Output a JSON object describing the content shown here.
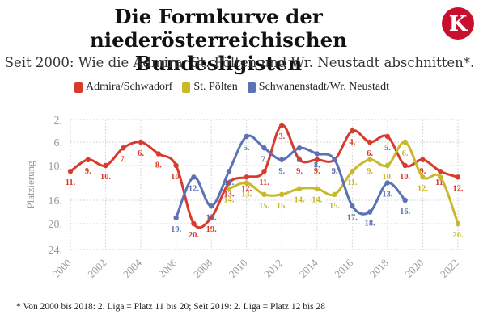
{
  "header": {
    "title_line1": "Die Formkurve der niederösterreichischen",
    "title_line2": "Bundesligisten",
    "subtitle": "Seit 2000: Wie die Admira, St. Pölten und Wr. Neustadt abschnitten*.",
    "logo_letter": "K"
  },
  "footnote": "* Von 2000 bis 2018: 2. Liga = Platz 11 bis 20; Seit 2019: 2. Liga = Platz 12 bis 28",
  "colors": {
    "admira": "#d93a2b",
    "stpoelten": "#c9b92a",
    "wrneustadt": "#5b72b5",
    "logo": "#c8102e"
  },
  "chart_data": {
    "type": "line",
    "ylabel": "Platzierung",
    "y_reversed": true,
    "ylim": [
      2,
      24
    ],
    "yticks": [
      2,
      6,
      10,
      16,
      20,
      24
    ],
    "ytick_labels": [
      "2.",
      "6.",
      "10.",
      "16.",
      "20.",
      "24."
    ],
    "xlim": [
      2000,
      2022
    ],
    "xticks": [
      2000,
      2002,
      2004,
      2006,
      2008,
      2010,
      2012,
      2014,
      2016,
      2018,
      2020,
      2022
    ],
    "grid": true,
    "legend_position": "top",
    "series": [
      {
        "name": "Admira/Schwadorf",
        "color": "#d93a2b",
        "points": [
          {
            "x": 2000,
            "y": 11,
            "label": "11."
          },
          {
            "x": 2001,
            "y": 9,
            "label": "9."
          },
          {
            "x": 2002,
            "y": 10,
            "label": "10."
          },
          {
            "x": 2003,
            "y": 7,
            "label": "7."
          },
          {
            "x": 2004,
            "y": 6,
            "label": "6."
          },
          {
            "x": 2005,
            "y": 8,
            "label": "8."
          },
          {
            "x": 2006,
            "y": 10,
            "label": "10."
          },
          {
            "x": 2007,
            "y": 20,
            "label": "20."
          },
          {
            "x": 2008,
            "y": 19,
            "label": "19."
          },
          {
            "x": 2009,
            "y": 13,
            "label": "13."
          },
          {
            "x": 2010,
            "y": 12,
            "label": "12."
          },
          {
            "x": 2011,
            "y": 11,
            "label": "11."
          },
          {
            "x": 2012,
            "y": 3,
            "label": "3."
          },
          {
            "x": 2013,
            "y": 9,
            "label": "9."
          },
          {
            "x": 2014,
            "y": 9,
            "label": "9."
          },
          {
            "x": 2015,
            "y": 9,
            "label": "9."
          },
          {
            "x": 2016,
            "y": 4,
            "label": "4."
          },
          {
            "x": 2017,
            "y": 6,
            "label": "6."
          },
          {
            "x": 2018,
            "y": 5,
            "label": "5."
          },
          {
            "x": 2019,
            "y": 10,
            "label": "10."
          },
          {
            "x": 2020,
            "y": 9,
            "label": "9."
          },
          {
            "x": 2021,
            "y": 11,
            "label": "11."
          },
          {
            "x": 2022,
            "y": 12,
            "label": "12."
          }
        ]
      },
      {
        "name": "St. Pölten",
        "color": "#c9b92a",
        "points": [
          {
            "x": 2009,
            "y": 14,
            "label": "14."
          },
          {
            "x": 2010,
            "y": 13,
            "label": "13."
          },
          {
            "x": 2011,
            "y": 15,
            "label": "15."
          },
          {
            "x": 2012,
            "y": 15,
            "label": "15."
          },
          {
            "x": 2013,
            "y": 14,
            "label": "14."
          },
          {
            "x": 2014,
            "y": 14,
            "label": "14."
          },
          {
            "x": 2015,
            "y": 15,
            "label": "15."
          },
          {
            "x": 2016,
            "y": 11,
            "label": "11."
          },
          {
            "x": 2017,
            "y": 9,
            "label": "9."
          },
          {
            "x": 2018,
            "y": 10,
            "label": "10."
          },
          {
            "x": 2019,
            "y": 6,
            "label": "6."
          },
          {
            "x": 2020,
            "y": 12,
            "label": "12."
          },
          {
            "x": 2021,
            "y": 12,
            "label": ""
          },
          {
            "x": 2022,
            "y": 20,
            "label": "20."
          }
        ]
      },
      {
        "name": "Schwanenstadt/Wr. Neustadt",
        "color": "#5b72b5",
        "points": [
          {
            "x": 2006,
            "y": 19,
            "label": "19."
          },
          {
            "x": 2007,
            "y": 12,
            "label": "12."
          },
          {
            "x": 2008,
            "y": 17,
            "label": "17."
          },
          {
            "x": 2009,
            "y": 11,
            "label": "11."
          },
          {
            "x": 2010,
            "y": 5,
            "label": "5."
          },
          {
            "x": 2011,
            "y": 7,
            "label": "7."
          },
          {
            "x": 2012,
            "y": 9,
            "label": "9."
          },
          {
            "x": 2013,
            "y": 7,
            "label": "7."
          },
          {
            "x": 2014,
            "y": 8,
            "label": "8."
          },
          {
            "x": 2015,
            "y": 9,
            "label": "9."
          },
          {
            "x": 2016,
            "y": 17,
            "label": "17."
          },
          {
            "x": 2017,
            "y": 18,
            "label": "18."
          },
          {
            "x": 2018,
            "y": 13,
            "label": "13."
          },
          {
            "x": 2019,
            "y": 16,
            "label": "16."
          }
        ]
      }
    ]
  }
}
